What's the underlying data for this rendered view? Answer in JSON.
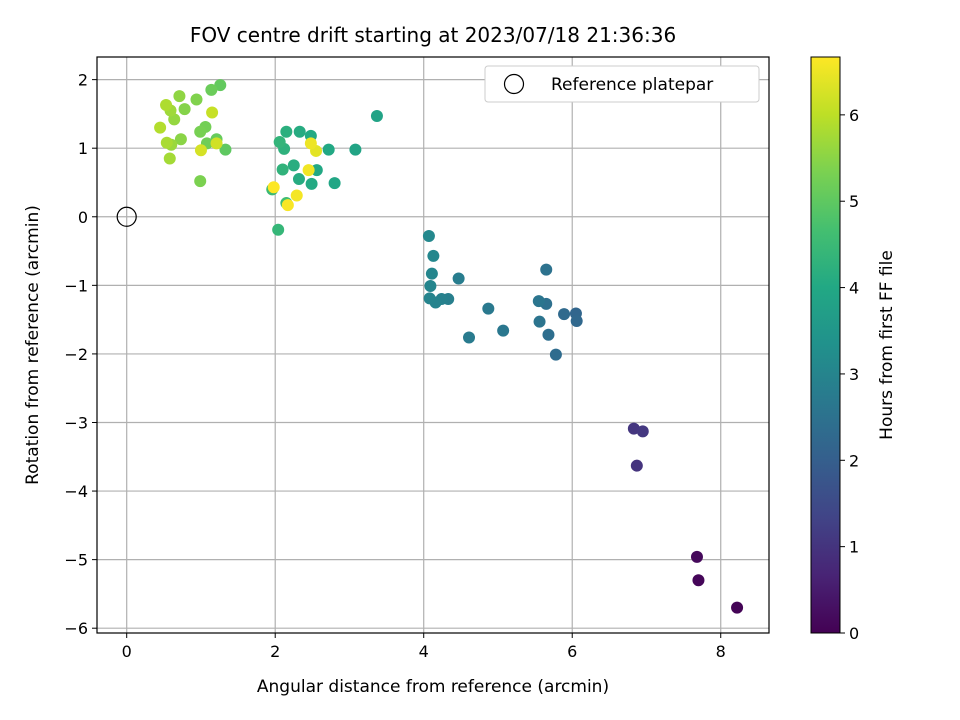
{
  "chart_data": {
    "type": "scatter",
    "title": "FOV centre drift starting at 2023/07/18 21:36:36",
    "xlabel": "Angular distance from reference (arcmin)",
    "ylabel": "Rotation from reference (arcmin)",
    "xlim": [
      -0.4,
      8.65
    ],
    "ylim": [
      -6.07,
      2.33
    ],
    "xticks": [
      0,
      2,
      4,
      6,
      8
    ],
    "xtick_labels": [
      "0",
      "2",
      "4",
      "6",
      "8"
    ],
    "yticks": [
      2,
      1,
      0,
      -1,
      -2,
      -3,
      -4,
      -5,
      -6
    ],
    "ytick_labels": [
      "2",
      "1",
      "0",
      "−1",
      "−2",
      "−3",
      "−4",
      "−5",
      "−6"
    ],
    "grid": true,
    "colorbar": {
      "label": "Hours from first FF file",
      "colormap": "viridis",
      "min": 0,
      "max": 6.67,
      "ticks": [
        0,
        1,
        2,
        3,
        4,
        5,
        6
      ],
      "tick_labels": [
        "0",
        "1",
        "2",
        "3",
        "4",
        "5",
        "6"
      ]
    },
    "legend": {
      "position": "upper right",
      "entries": [
        {
          "label": "Reference platepar",
          "marker": "open-circle",
          "x": 0,
          "y": 0
        }
      ]
    },
    "points": [
      {
        "x": 8.22,
        "y": -5.7,
        "c": 0.05
      },
      {
        "x": 7.7,
        "y": -5.3,
        "c": 0.1
      },
      {
        "x": 7.68,
        "y": -4.96,
        "c": 0.15
      },
      {
        "x": 6.87,
        "y": -3.63,
        "c": 1.0
      },
      {
        "x": 6.83,
        "y": -3.09,
        "c": 1.05
      },
      {
        "x": 6.95,
        "y": -3.13,
        "c": 1.08
      },
      {
        "x": 6.05,
        "y": -1.41,
        "c": 2.2
      },
      {
        "x": 6.06,
        "y": -1.52,
        "c": 2.25
      },
      {
        "x": 5.89,
        "y": -1.42,
        "c": 2.3
      },
      {
        "x": 5.78,
        "y": -2.01,
        "c": 2.35
      },
      {
        "x": 5.68,
        "y": -1.72,
        "c": 2.4
      },
      {
        "x": 5.65,
        "y": -1.27,
        "c": 2.45
      },
      {
        "x": 5.65,
        "y": -0.77,
        "c": 2.5
      },
      {
        "x": 5.56,
        "y": -1.53,
        "c": 2.55
      },
      {
        "x": 5.55,
        "y": -1.23,
        "c": 2.6
      },
      {
        "x": 5.07,
        "y": -1.66,
        "c": 2.65
      },
      {
        "x": 4.87,
        "y": -1.34,
        "c": 2.7
      },
      {
        "x": 4.61,
        "y": -1.76,
        "c": 2.75
      },
      {
        "x": 4.47,
        "y": -0.9,
        "c": 2.8
      },
      {
        "x": 4.33,
        "y": -1.2,
        "c": 2.85
      },
      {
        "x": 4.24,
        "y": -1.2,
        "c": 2.9
      },
      {
        "x": 4.16,
        "y": -1.25,
        "c": 2.95
      },
      {
        "x": 4.08,
        "y": -1.19,
        "c": 3.0
      },
      {
        "x": 4.09,
        "y": -1.01,
        "c": 3.02
      },
      {
        "x": 4.11,
        "y": -0.83,
        "c": 3.05
      },
      {
        "x": 4.13,
        "y": -0.57,
        "c": 3.08
      },
      {
        "x": 4.07,
        "y": -0.28,
        "c": 3.1
      },
      {
        "x": 3.37,
        "y": 1.47,
        "c": 3.85
      },
      {
        "x": 3.08,
        "y": 0.98,
        "c": 3.9
      },
      {
        "x": 2.8,
        "y": 0.49,
        "c": 3.95
      },
      {
        "x": 2.72,
        "y": 0.98,
        "c": 4.0
      },
      {
        "x": 2.56,
        "y": 0.68,
        "c": 4.0
      },
      {
        "x": 2.48,
        "y": 1.18,
        "c": 4.05
      },
      {
        "x": 2.49,
        "y": 0.48,
        "c": 4.05
      },
      {
        "x": 2.33,
        "y": 1.24,
        "c": 4.1
      },
      {
        "x": 2.32,
        "y": 0.55,
        "c": 4.1
      },
      {
        "x": 2.25,
        "y": 0.75,
        "c": 4.15
      },
      {
        "x": 2.15,
        "y": 1.24,
        "c": 4.2
      },
      {
        "x": 2.12,
        "y": 0.99,
        "c": 4.25
      },
      {
        "x": 2.1,
        "y": 0.69,
        "c": 4.3
      },
      {
        "x": 2.06,
        "y": 1.09,
        "c": 4.35
      },
      {
        "x": 2.04,
        "y": -0.19,
        "c": 4.4
      },
      {
        "x": 1.96,
        "y": 0.4,
        "c": 4.5
      },
      {
        "x": 2.15,
        "y": 0.2,
        "c": 4.6
      },
      {
        "x": 1.33,
        "y": 0.98,
        "c": 5.0
      },
      {
        "x": 1.26,
        "y": 1.92,
        "c": 5.05
      },
      {
        "x": 1.21,
        "y": 1.13,
        "c": 5.1
      },
      {
        "x": 1.14,
        "y": 1.85,
        "c": 5.15
      },
      {
        "x": 1.08,
        "y": 1.07,
        "c": 5.2
      },
      {
        "x": 1.06,
        "y": 1.31,
        "c": 5.25
      },
      {
        "x": 0.99,
        "y": 1.24,
        "c": 5.3
      },
      {
        "x": 0.99,
        "y": 0.52,
        "c": 5.35
      },
      {
        "x": 0.94,
        "y": 1.71,
        "c": 5.4
      },
      {
        "x": 0.78,
        "y": 1.57,
        "c": 5.45
      },
      {
        "x": 0.73,
        "y": 1.13,
        "c": 5.5
      },
      {
        "x": 0.71,
        "y": 1.76,
        "c": 5.55
      },
      {
        "x": 0.64,
        "y": 1.42,
        "c": 5.6
      },
      {
        "x": 0.6,
        "y": 1.05,
        "c": 5.65
      },
      {
        "x": 0.59,
        "y": 1.55,
        "c": 5.7
      },
      {
        "x": 0.58,
        "y": 0.85,
        "c": 5.75
      },
      {
        "x": 0.54,
        "y": 1.08,
        "c": 5.8
      },
      {
        "x": 0.53,
        "y": 1.63,
        "c": 5.85
      },
      {
        "x": 0.45,
        "y": 1.3,
        "c": 5.9
      },
      {
        "x": 1.15,
        "y": 1.52,
        "c": 6.1
      },
      {
        "x": 1.21,
        "y": 1.07,
        "c": 6.2
      },
      {
        "x": 1.0,
        "y": 0.97,
        "c": 6.25
      },
      {
        "x": 2.55,
        "y": 0.96,
        "c": 6.4
      },
      {
        "x": 2.48,
        "y": 1.07,
        "c": 6.5
      },
      {
        "x": 2.45,
        "y": 0.68,
        "c": 6.55
      },
      {
        "x": 2.29,
        "y": 0.31,
        "c": 6.58
      },
      {
        "x": 2.17,
        "y": 0.17,
        "c": 6.62
      },
      {
        "x": 1.98,
        "y": 0.43,
        "c": 6.66
      }
    ]
  }
}
